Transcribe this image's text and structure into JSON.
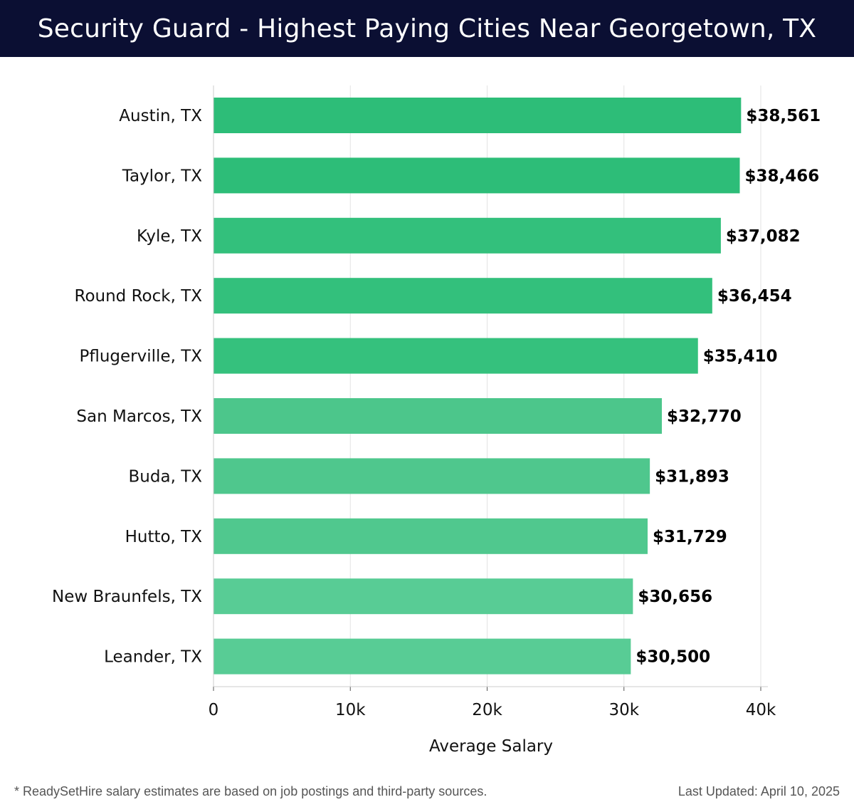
{
  "header": {
    "title": "Security Guard - Highest Paying Cities Near Georgetown, TX"
  },
  "chart_data": {
    "type": "bar",
    "orientation": "horizontal",
    "categories": [
      "Austin, TX",
      "Taylor, TX",
      "Kyle, TX",
      "Round Rock, TX",
      "Pflugerville, TX",
      "San Marcos, TX",
      "Buda, TX",
      "Hutto, TX",
      "New Braunfels, TX",
      "Leander, TX"
    ],
    "values": [
      38561,
      38466,
      37082,
      36454,
      35410,
      32770,
      31893,
      31729,
      30656,
      30500
    ],
    "value_labels": [
      "$38,561",
      "$38,466",
      "$37,082",
      "$36,454",
      "$35,410",
      "$32,770",
      "$31,893",
      "$31,729",
      "$30,656",
      "$30,500"
    ],
    "title": "",
    "xlabel": "Average Salary",
    "ylabel": "",
    "xlim": [
      0,
      40000
    ],
    "x_ticks": [
      0,
      10000,
      20000,
      30000,
      40000
    ],
    "x_tick_labels": [
      "0",
      "10k",
      "20k",
      "30k",
      "40k"
    ],
    "grid": true,
    "bar_colors": [
      "#2dbd78",
      "#2dbd78",
      "#33c07c",
      "#33c07c",
      "#35c17d",
      "#4cc68b",
      "#4fc78d",
      "#50c88e",
      "#58cc95",
      "#58cc95"
    ]
  },
  "footer": {
    "note": "* ReadySetHire salary estimates are based on job postings and third-party sources.",
    "updated": "Last Updated: April 10, 2025"
  }
}
